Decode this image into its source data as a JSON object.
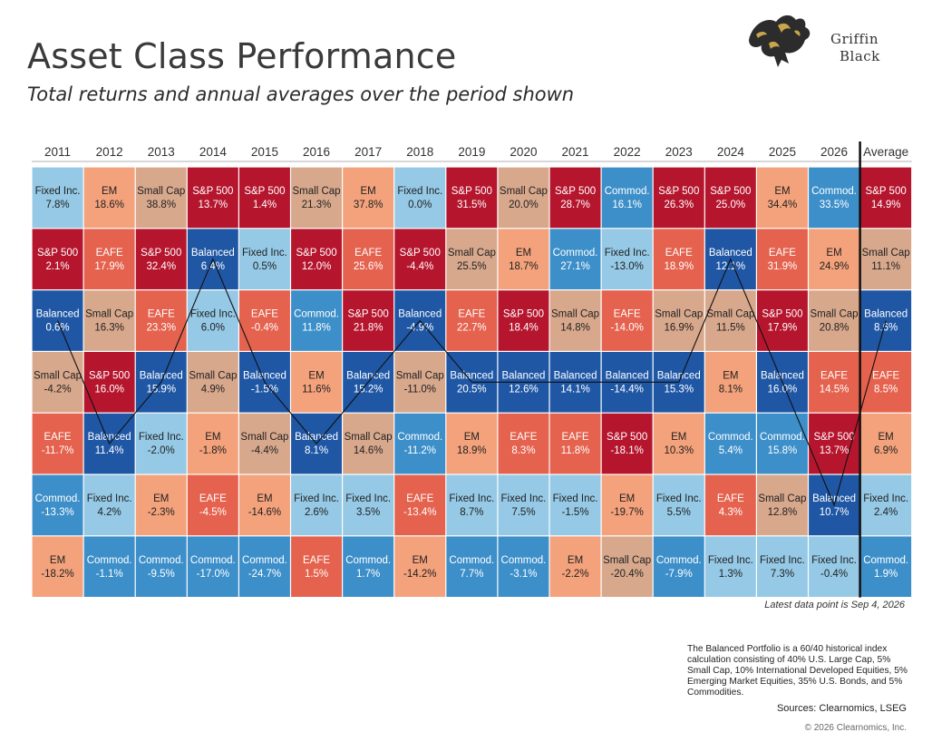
{
  "title": "Asset Class Performance",
  "subtitle": "Total returns and annual averages over the period shown",
  "logo": {
    "line1": "Griffin",
    "line2": "Black",
    "icon": "griffin-icon"
  },
  "latest": "Latest data point is Sep 4, 2026",
  "note": "The Balanced Portfolio is a 60/40 historical index calculation consisting of 40% U.S. Large Cap, 5% Small Cap, 10% International Developed Equities, 5% Emerging Market Equities, 35% U.S. Bonds, and 5% Commodities.",
  "sources": "Sources: Clearnomics, LSEG",
  "copyright": "© 2026 Clearnomics, Inc.",
  "colors": {
    "S&P 500": "#b5162e",
    "Small Cap": "#d8a88c",
    "EM": "#f3a27c",
    "EAFE": "#e4624e",
    "Balanced": "#1f57a5",
    "Fixed Inc.": "#95c9e6",
    "Commod.": "#3d8fc9"
  },
  "text_colors": {
    "S&P 500": "#ffffff",
    "Small Cap": "#222222",
    "EM": "#222222",
    "EAFE": "#ffffff",
    "Balanced": "#ffffff",
    "Fixed Inc.": "#222222",
    "Commod.": "#ffffff"
  },
  "chart_data": {
    "type": "table",
    "columns": [
      "2011",
      "2012",
      "2013",
      "2014",
      "2015",
      "2016",
      "2017",
      "2018",
      "2019",
      "2020",
      "2021",
      "2022",
      "2023",
      "2024",
      "2025",
      "2026",
      "Average"
    ],
    "cells": [
      [
        [
          "Fixed Inc.",
          "7.8%"
        ],
        [
          "S&P 500",
          "2.1%"
        ],
        [
          "Balanced",
          "0.6%"
        ],
        [
          "Small Cap",
          "-4.2%"
        ],
        [
          "EAFE",
          "-11.7%"
        ],
        [
          "Commod.",
          "-13.3%"
        ],
        [
          "EM",
          "-18.2%"
        ]
      ],
      [
        [
          "EM",
          "18.6%"
        ],
        [
          "EAFE",
          "17.9%"
        ],
        [
          "Small Cap",
          "16.3%"
        ],
        [
          "S&P 500",
          "16.0%"
        ],
        [
          "Balanced",
          "11.4%"
        ],
        [
          "Fixed Inc.",
          "4.2%"
        ],
        [
          "Commod.",
          "-1.1%"
        ]
      ],
      [
        [
          "Small Cap",
          "38.8%"
        ],
        [
          "S&P 500",
          "32.4%"
        ],
        [
          "EAFE",
          "23.3%"
        ],
        [
          "Balanced",
          "15.9%"
        ],
        [
          "Fixed Inc.",
          "-2.0%"
        ],
        [
          "EM",
          "-2.3%"
        ],
        [
          "Commod.",
          "-9.5%"
        ]
      ],
      [
        [
          "S&P 500",
          "13.7%"
        ],
        [
          "Balanced",
          "6.4%"
        ],
        [
          "Fixed Inc.",
          "6.0%"
        ],
        [
          "Small Cap",
          "4.9%"
        ],
        [
          "EM",
          "-1.8%"
        ],
        [
          "EAFE",
          "-4.5%"
        ],
        [
          "Commod.",
          "-17.0%"
        ]
      ],
      [
        [
          "S&P 500",
          "1.4%"
        ],
        [
          "Fixed Inc.",
          "0.5%"
        ],
        [
          "EAFE",
          "-0.4%"
        ],
        [
          "Balanced",
          "-1.5%"
        ],
        [
          "Small Cap",
          "-4.4%"
        ],
        [
          "EM",
          "-14.6%"
        ],
        [
          "Commod.",
          "-24.7%"
        ]
      ],
      [
        [
          "Small Cap",
          "21.3%"
        ],
        [
          "S&P 500",
          "12.0%"
        ],
        [
          "Commod.",
          "11.8%"
        ],
        [
          "EM",
          "11.6%"
        ],
        [
          "Balanced",
          "8.1%"
        ],
        [
          "Fixed Inc.",
          "2.6%"
        ],
        [
          "EAFE",
          "1.5%"
        ]
      ],
      [
        [
          "EM",
          "37.8%"
        ],
        [
          "EAFE",
          "25.6%"
        ],
        [
          "S&P 500",
          "21.8%"
        ],
        [
          "Balanced",
          "15.2%"
        ],
        [
          "Small Cap",
          "14.6%"
        ],
        [
          "Fixed Inc.",
          "3.5%"
        ],
        [
          "Commod.",
          "1.7%"
        ]
      ],
      [
        [
          "Fixed Inc.",
          "0.0%"
        ],
        [
          "S&P 500",
          "-4.4%"
        ],
        [
          "Balanced",
          "-4.9%"
        ],
        [
          "Small Cap",
          "-11.0%"
        ],
        [
          "Commod.",
          "-11.2%"
        ],
        [
          "EAFE",
          "-13.4%"
        ],
        [
          "EM",
          "-14.2%"
        ]
      ],
      [
        [
          "S&P 500",
          "31.5%"
        ],
        [
          "Small Cap",
          "25.5%"
        ],
        [
          "EAFE",
          "22.7%"
        ],
        [
          "Balanced",
          "20.5%"
        ],
        [
          "EM",
          "18.9%"
        ],
        [
          "Fixed Inc.",
          "8.7%"
        ],
        [
          "Commod.",
          "7.7%"
        ]
      ],
      [
        [
          "Small Cap",
          "20.0%"
        ],
        [
          "EM",
          "18.7%"
        ],
        [
          "S&P 500",
          "18.4%"
        ],
        [
          "Balanced",
          "12.6%"
        ],
        [
          "EAFE",
          "8.3%"
        ],
        [
          "Fixed Inc.",
          "7.5%"
        ],
        [
          "Commod.",
          "-3.1%"
        ]
      ],
      [
        [
          "S&P 500",
          "28.7%"
        ],
        [
          "Commod.",
          "27.1%"
        ],
        [
          "Small Cap",
          "14.8%"
        ],
        [
          "Balanced",
          "14.1%"
        ],
        [
          "EAFE",
          "11.8%"
        ],
        [
          "Fixed Inc.",
          "-1.5%"
        ],
        [
          "EM",
          "-2.2%"
        ]
      ],
      [
        [
          "Commod.",
          "16.1%"
        ],
        [
          "Fixed Inc.",
          "-13.0%"
        ],
        [
          "EAFE",
          "-14.0%"
        ],
        [
          "Balanced",
          "-14.4%"
        ],
        [
          "S&P 500",
          "-18.1%"
        ],
        [
          "EM",
          "-19.7%"
        ],
        [
          "Small Cap",
          "-20.4%"
        ]
      ],
      [
        [
          "S&P 500",
          "26.3%"
        ],
        [
          "EAFE",
          "18.9%"
        ],
        [
          "Small Cap",
          "16.9%"
        ],
        [
          "Balanced",
          "15.3%"
        ],
        [
          "EM",
          "10.3%"
        ],
        [
          "Fixed Inc.",
          "5.5%"
        ],
        [
          "Commod.",
          "-7.9%"
        ]
      ],
      [
        [
          "S&P 500",
          "25.0%"
        ],
        [
          "Balanced",
          "12.1%"
        ],
        [
          "Small Cap",
          "11.5%"
        ],
        [
          "EM",
          "8.1%"
        ],
        [
          "Commod.",
          "5.4%"
        ],
        [
          "EAFE",
          "4.3%"
        ],
        [
          "Fixed Inc.",
          "1.3%"
        ]
      ],
      [
        [
          "EM",
          "34.4%"
        ],
        [
          "EAFE",
          "31.9%"
        ],
        [
          "S&P 500",
          "17.9%"
        ],
        [
          "Balanced",
          "16.0%"
        ],
        [
          "Commod.",
          "15.8%"
        ],
        [
          "Small Cap",
          "12.8%"
        ],
        [
          "Fixed Inc.",
          "7.3%"
        ]
      ],
      [
        [
          "Commod.",
          "33.5%"
        ],
        [
          "EM",
          "24.9%"
        ],
        [
          "Small Cap",
          "20.8%"
        ],
        [
          "EAFE",
          "14.5%"
        ],
        [
          "S&P 500",
          "13.7%"
        ],
        [
          "Balanced",
          "10.7%"
        ],
        [
          "Fixed Inc.",
          "-0.4%"
        ]
      ],
      [
        [
          "S&P 500",
          "14.9%"
        ],
        [
          "Small Cap",
          "11.1%"
        ],
        [
          "Balanced",
          "8.6%"
        ],
        [
          "EAFE",
          "8.5%"
        ],
        [
          "EM",
          "6.9%"
        ],
        [
          "Fixed Inc.",
          "2.4%"
        ],
        [
          "Commod.",
          "1.9%"
        ]
      ]
    ],
    "highlight_line": "Balanced"
  }
}
